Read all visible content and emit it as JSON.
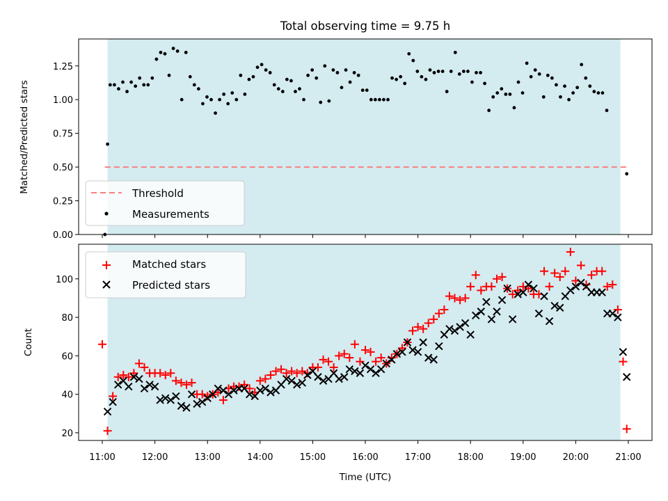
{
  "chart_data": [
    {
      "type": "scatter",
      "title": "Total observing time = 9.75 h",
      "xlabel": "",
      "ylabel": "Matched/Predicted stars",
      "xlim": [
        10.55,
        21.45
      ],
      "ylim": [
        0,
        1.45
      ],
      "yticks": [
        "0.00",
        "0.25",
        "0.50",
        "0.75",
        "1.00",
        "1.25"
      ],
      "shaded_span": [
        11.1,
        20.85
      ],
      "shade_color": "#d4ebf0",
      "threshold": {
        "name": "Threshold",
        "y": 0.5,
        "x_range": [
          11.05,
          21.0
        ],
        "color": "#f87f7f"
      },
      "legend": [
        "Threshold",
        "Measurements"
      ],
      "legend_location": "lower-left",
      "series": [
        {
          "name": "Measurements",
          "marker": "dot",
          "color": "#000000",
          "y": [
            1.11,
            1.11,
            1.08,
            1.13,
            1.06,
            1.13,
            1.1,
            1.16,
            1.11,
            1.11,
            1.16,
            1.3,
            1.35,
            1.34,
            1.18,
            1.38,
            1.36,
            1.0,
            1.35,
            1.17,
            1.11,
            1.08,
            0.97,
            1.02,
            1.0,
            0.9,
            1.0,
            1.04,
            0.97,
            1.05,
            1.0,
            1.18,
            1.04,
            1.15,
            1.17,
            1.24,
            1.26,
            1.22,
            1.2,
            1.11,
            1.08,
            1.06,
            1.15,
            1.14,
            1.06,
            1.08,
            1.0,
            1.18,
            1.22,
            1.16,
            0.98,
            1.25,
            0.99,
            1.22,
            1.2,
            1.09,
            1.22,
            1.13,
            1.2,
            1.18,
            1.07,
            1.07,
            1.0,
            1.0,
            1.0,
            1.0,
            1.0,
            1.16,
            1.15,
            1.17,
            1.12,
            1.34,
            1.29,
            1.21,
            1.17,
            1.15,
            1.22,
            1.2,
            1.21,
            1.21,
            1.06,
            1.21,
            1.35,
            1.19,
            1.21,
            1.21,
            1.13,
            1.2,
            1.2,
            1.12,
            0.92,
            1.02,
            1.05,
            1.08,
            1.04,
            1.04,
            0.94,
            1.13,
            1.05,
            1.27,
            1.17,
            1.22,
            1.19,
            1.02,
            1.18,
            1.16,
            1.11,
            1.02,
            1.1,
            1.0,
            1.05,
            1.09,
            1.26,
            1.16,
            1.1,
            1.06,
            1.05,
            1.05,
            0.92
          ],
          "x_start": 11.15,
          "x_step": 0.08,
          "extra_points": [
            [
              11.05,
              0.0
            ],
            [
              11.1,
              0.67
            ],
            [
              20.97,
              0.45
            ]
          ]
        }
      ]
    },
    {
      "type": "scatter",
      "title": "",
      "xlabel": "Time (UTC)",
      "ylabel": "Count",
      "xlim": [
        10.55,
        21.45
      ],
      "ylim": [
        16,
        118
      ],
      "yticks": [
        "20",
        "40",
        "60",
        "80",
        "100"
      ],
      "xticks": [
        "11:00",
        "12:00",
        "13:00",
        "14:00",
        "15:00",
        "16:00",
        "17:00",
        "18:00",
        "19:00",
        "20:00",
        "21:00"
      ],
      "xtick_hours": [
        11,
        12,
        13,
        14,
        15,
        16,
        17,
        18,
        19,
        20,
        21
      ],
      "shaded_span": [
        11.1,
        20.85
      ],
      "legend": [
        "Matched stars",
        "Predicted stars"
      ],
      "legend_location": "upper-left",
      "series": [
        {
          "name": "Matched stars",
          "marker": "plus",
          "color": "#ff0000",
          "points": [
            [
              11.0,
              66
            ],
            [
              11.1,
              21
            ],
            [
              11.2,
              39
            ],
            [
              11.3,
              49
            ],
            [
              11.4,
              50
            ],
            [
              11.5,
              49
            ],
            [
              11.6,
              51
            ],
            [
              11.7,
              56
            ],
            [
              11.8,
              54
            ],
            [
              11.9,
              51
            ],
            [
              12.0,
              51
            ],
            [
              12.1,
              51
            ],
            [
              12.2,
              50
            ],
            [
              12.3,
              51
            ],
            [
              12.4,
              47
            ],
            [
              12.5,
              46
            ],
            [
              12.6,
              45
            ],
            [
              12.7,
              46
            ],
            [
              12.8,
              40
            ],
            [
              12.9,
              40
            ],
            [
              13.0,
              39
            ],
            [
              13.1,
              40
            ],
            [
              13.2,
              41
            ],
            [
              13.3,
              37
            ],
            [
              13.4,
              43
            ],
            [
              13.5,
              44
            ],
            [
              13.6,
              44
            ],
            [
              13.7,
              45
            ],
            [
              13.8,
              43
            ],
            [
              13.9,
              41
            ],
            [
              14.0,
              47
            ],
            [
              14.1,
              48
            ],
            [
              14.2,
              50
            ],
            [
              14.3,
              52
            ],
            [
              14.4,
              53
            ],
            [
              14.5,
              51
            ],
            [
              14.6,
              52
            ],
            [
              14.7,
              51
            ],
            [
              14.8,
              52
            ],
            [
              14.9,
              51
            ],
            [
              15.0,
              54
            ],
            [
              15.1,
              54
            ],
            [
              15.2,
              58
            ],
            [
              15.3,
              57
            ],
            [
              15.4,
              54
            ],
            [
              15.5,
              60
            ],
            [
              15.6,
              61
            ],
            [
              15.7,
              59
            ],
            [
              15.8,
              66
            ],
            [
              15.9,
              57
            ],
            [
              16.0,
              63
            ],
            [
              16.1,
              62
            ],
            [
              16.2,
              57
            ],
            [
              16.3,
              59
            ],
            [
              16.4,
              56
            ],
            [
              16.5,
              59
            ],
            [
              16.6,
              61
            ],
            [
              16.7,
              64
            ],
            [
              16.8,
              67
            ],
            [
              16.9,
              73
            ],
            [
              17.0,
              75
            ],
            [
              17.1,
              74
            ],
            [
              17.2,
              77
            ],
            [
              17.3,
              79
            ],
            [
              17.4,
              82
            ],
            [
              17.5,
              84
            ],
            [
              17.6,
              91
            ],
            [
              17.7,
              90
            ],
            [
              17.8,
              89
            ],
            [
              17.9,
              90
            ],
            [
              18.0,
              96
            ],
            [
              18.1,
              102
            ],
            [
              18.2,
              94
            ],
            [
              18.3,
              96
            ],
            [
              18.4,
              96
            ],
            [
              18.5,
              100
            ],
            [
              18.6,
              101
            ],
            [
              18.7,
              95
            ],
            [
              18.8,
              92
            ],
            [
              18.9,
              94
            ],
            [
              19.0,
              96
            ],
            [
              19.1,
              95
            ],
            [
              19.2,
              92
            ],
            [
              19.3,
              92
            ],
            [
              19.4,
              104
            ],
            [
              19.5,
              96
            ],
            [
              19.6,
              103
            ],
            [
              19.7,
              101
            ],
            [
              19.8,
              104
            ],
            [
              19.9,
              114
            ],
            [
              20.0,
              99
            ],
            [
              20.1,
              107
            ],
            [
              20.2,
              97
            ],
            [
              20.3,
              102
            ],
            [
              20.4,
              104
            ],
            [
              20.5,
              104
            ],
            [
              20.6,
              96
            ],
            [
              20.7,
              97
            ],
            [
              20.8,
              84
            ],
            [
              20.9,
              57
            ],
            [
              20.97,
              22
            ]
          ]
        },
        {
          "name": "Predicted stars",
          "marker": "x",
          "color": "#000000",
          "points": [
            [
              11.1,
              31
            ],
            [
              11.2,
              36
            ],
            [
              11.3,
              45
            ],
            [
              11.4,
              47
            ],
            [
              11.5,
              44
            ],
            [
              11.6,
              49
            ],
            [
              11.7,
              48
            ],
            [
              11.8,
              43
            ],
            [
              11.9,
              45
            ],
            [
              12.0,
              44
            ],
            [
              12.1,
              37
            ],
            [
              12.2,
              38
            ],
            [
              12.3,
              37
            ],
            [
              12.4,
              39
            ],
            [
              12.5,
              34
            ],
            [
              12.6,
              33
            ],
            [
              12.7,
              40
            ],
            [
              12.8,
              35
            ],
            [
              12.9,
              36
            ],
            [
              13.0,
              38
            ],
            [
              13.1,
              40
            ],
            [
              13.2,
              43
            ],
            [
              13.3,
              42
            ],
            [
              13.4,
              40
            ],
            [
              13.5,
              42
            ],
            [
              13.6,
              43
            ],
            [
              13.7,
              43
            ],
            [
              13.8,
              40
            ],
            [
              13.9,
              39
            ],
            [
              14.0,
              42
            ],
            [
              14.1,
              43
            ],
            [
              14.2,
              41
            ],
            [
              14.3,
              42
            ],
            [
              14.4,
              45
            ],
            [
              14.5,
              48
            ],
            [
              14.6,
              47
            ],
            [
              14.7,
              45
            ],
            [
              14.8,
              46
            ],
            [
              14.9,
              50
            ],
            [
              15.0,
              52
            ],
            [
              15.1,
              49
            ],
            [
              15.2,
              47
            ],
            [
              15.3,
              48
            ],
            [
              15.4,
              51
            ],
            [
              15.5,
              48
            ],
            [
              15.6,
              49
            ],
            [
              15.7,
              53
            ],
            [
              15.8,
              52
            ],
            [
              15.9,
              51
            ],
            [
              16.0,
              55
            ],
            [
              16.1,
              53
            ],
            [
              16.2,
              51
            ],
            [
              16.3,
              53
            ],
            [
              16.4,
              56
            ],
            [
              16.5,
              58
            ],
            [
              16.6,
              61
            ],
            [
              16.7,
              62
            ],
            [
              16.8,
              67
            ],
            [
              16.9,
              63
            ],
            [
              17.0,
              62
            ],
            [
              17.1,
              67
            ],
            [
              17.2,
              59
            ],
            [
              17.3,
              58
            ],
            [
              17.4,
              65
            ],
            [
              17.5,
              71
            ],
            [
              17.6,
              74
            ],
            [
              17.7,
              73
            ],
            [
              17.8,
              75
            ],
            [
              17.9,
              77
            ],
            [
              18.0,
              71
            ],
            [
              18.1,
              81
            ],
            [
              18.2,
              83
            ],
            [
              18.3,
              88
            ],
            [
              18.4,
              79
            ],
            [
              18.5,
              83
            ],
            [
              18.6,
              89
            ],
            [
              18.7,
              95
            ],
            [
              18.8,
              79
            ],
            [
              18.9,
              92
            ],
            [
              19.0,
              93
            ],
            [
              19.1,
              97
            ],
            [
              19.2,
              95
            ],
            [
              19.3,
              82
            ],
            [
              19.4,
              91
            ],
            [
              19.5,
              78
            ],
            [
              19.6,
              86
            ],
            [
              19.7,
              85
            ],
            [
              19.8,
              91
            ],
            [
              19.9,
              94
            ],
            [
              20.0,
              96
            ],
            [
              20.1,
              98
            ],
            [
              20.2,
              96
            ],
            [
              20.3,
              93
            ],
            [
              20.4,
              93
            ],
            [
              20.5,
              93
            ],
            [
              20.6,
              82
            ],
            [
              20.7,
              82
            ],
            [
              20.8,
              80
            ],
            [
              20.9,
              62
            ],
            [
              20.97,
              49
            ]
          ]
        }
      ]
    }
  ]
}
